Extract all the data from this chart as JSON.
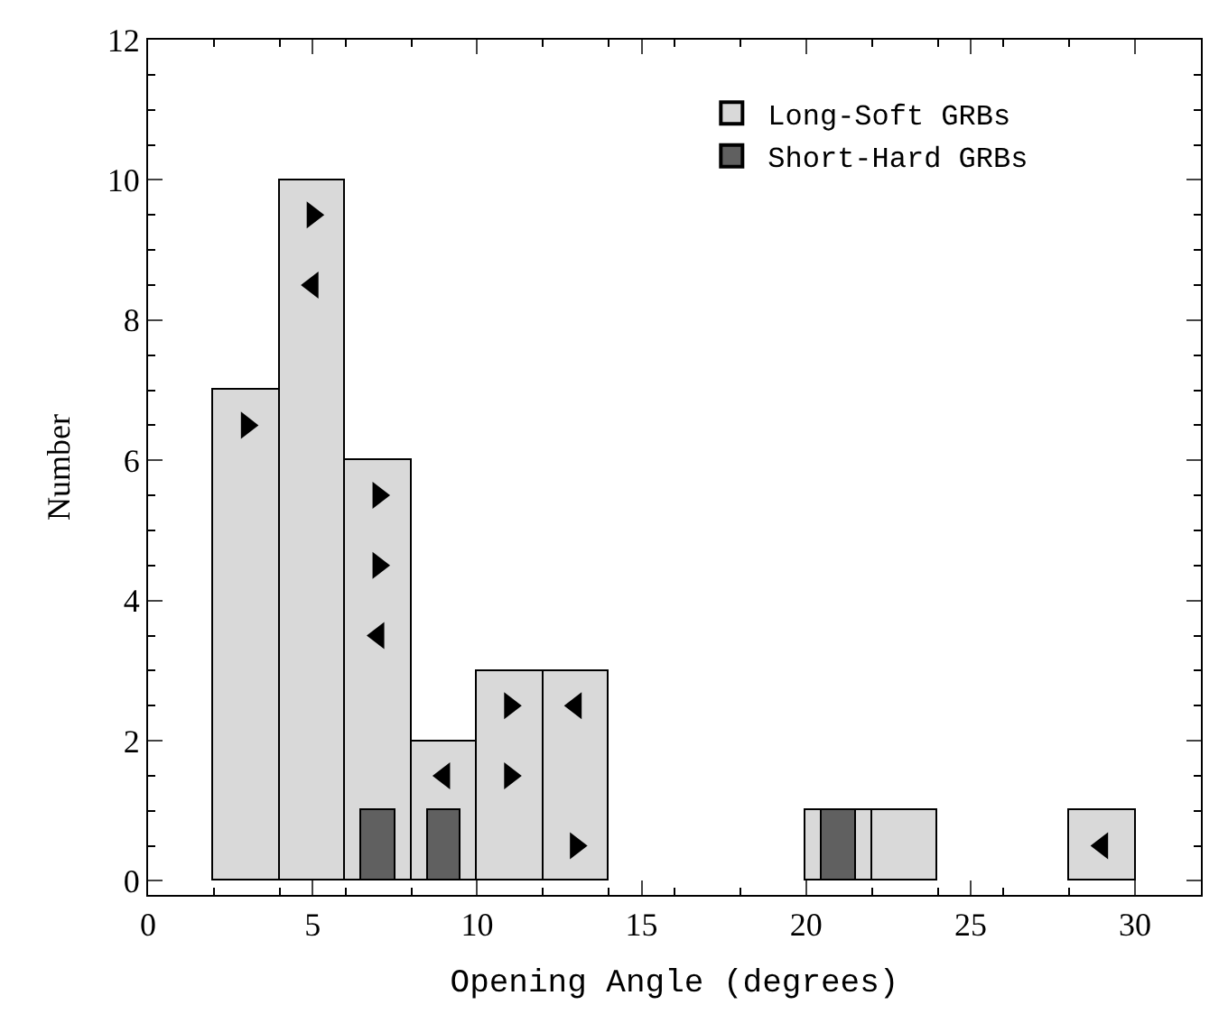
{
  "chart_data": {
    "type": "histogram",
    "xlabel": "Opening Angle (degrees)",
    "ylabel": "Number",
    "xlim": [
      0,
      32
    ],
    "xticks": [
      0,
      5,
      10,
      15,
      20,
      25,
      30
    ],
    "ylim": [
      -0.2,
      12
    ],
    "yticks": [
      0,
      2,
      4,
      6,
      8,
      10,
      12
    ],
    "legend": "top right",
    "series": [
      {
        "name": "Long-Soft GRBs",
        "color": "#d9d9d9",
        "bins": [
          2,
          4,
          6,
          8,
          10,
          12,
          14,
          16,
          18,
          20,
          22,
          24,
          26,
          28,
          30
        ],
        "values": [
          7,
          10,
          6,
          2,
          3,
          3,
          0,
          0,
          0,
          1,
          1,
          0,
          0,
          1
        ]
      },
      {
        "name": "Short-Hard GRBs",
        "color": "#606060",
        "bins": [
          6.5,
          7.5,
          8.5,
          9.5,
          10.5,
          11.5,
          12.5,
          13.5,
          14.5,
          15.5,
          16.5,
          17.5,
          18.5,
          19.5,
          20.5,
          21.5
        ],
        "values": [
          1,
          0,
          1,
          0,
          0,
          0,
          0,
          0,
          0,
          0,
          0,
          0,
          0,
          0,
          1
        ]
      },
      {
        "type": "scatter",
        "marker": "triangle",
        "color": "#000000",
        "x": [
          3,
          5,
          7,
          7,
          11,
          11,
          13
        ],
        "values": [
          6.5,
          9.5,
          5.5,
          4.5,
          2.5,
          1.5,
          0.5
        ]
      },
      {
        "type": "scatter",
        "marker": "triangle",
        "color": "#000000",
        "x": [
          5,
          7,
          9,
          13,
          29
        ],
        "values": [
          8.5,
          3.5,
          1.5,
          2.5,
          0.5
        ]
      }
    ]
  }
}
